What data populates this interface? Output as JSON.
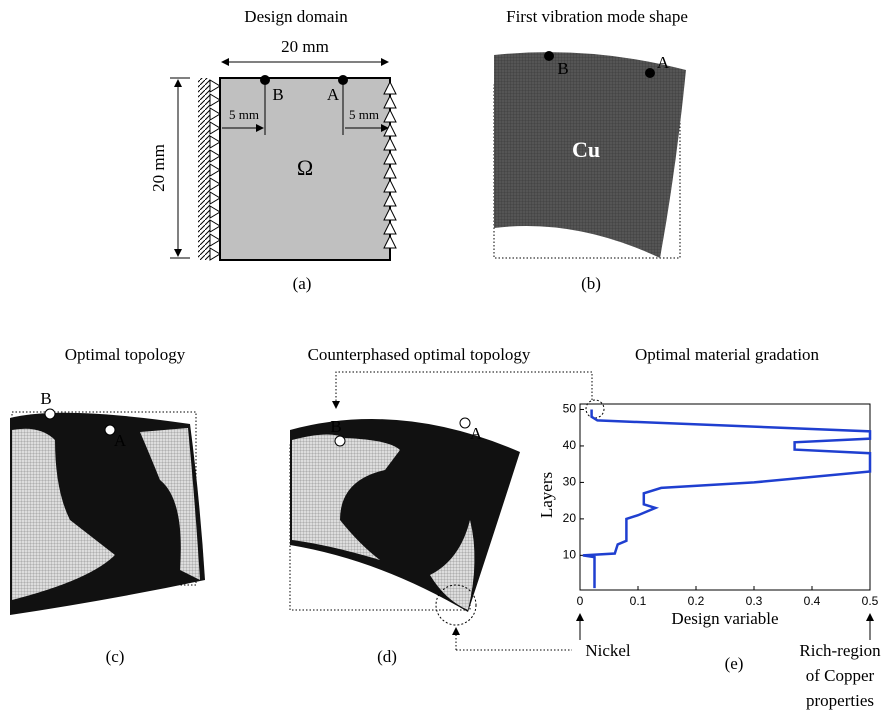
{
  "panels": [
    {
      "title": "Design domain",
      "label": "(a)",
      "width_label": "20 mm",
      "height_label": "20 mm",
      "offset_labels": [
        "5 mm",
        "5 mm"
      ],
      "points": [
        "B",
        "A"
      ],
      "domain_label": "Ω"
    },
    {
      "title": "First vibration mode shape",
      "label": "(b)",
      "points": [
        "B",
        "A"
      ],
      "material": "Cu"
    },
    {
      "title": "Optimal topology",
      "label": "(c)",
      "points": [
        "B",
        "A"
      ]
    },
    {
      "title": "Counterphased optimal topology",
      "label": "(d)",
      "points": [
        "B",
        "A"
      ]
    }
  ],
  "chart_data": {
    "type": "line",
    "title": "Optimal material gradation",
    "x_label": "Design variable",
    "y_label": "Layers",
    "label": "(e)",
    "xlim": [
      0,
      0.5
    ],
    "ylim": [
      0.5,
      51.5
    ],
    "xticks": [
      0,
      0.1,
      0.2,
      0.3,
      0.4,
      0.5
    ],
    "yticks": [
      10,
      20,
      30,
      40,
      50
    ],
    "x": [
      0.025,
      0.025,
      0.005,
      0.06,
      0.065,
      0.08,
      0.08,
      0.1,
      0.13,
      0.11,
      0.11,
      0.14,
      0.3,
      0.5,
      0.5,
      0.37,
      0.37,
      0.5,
      0.5,
      0.03,
      0.02,
      0.02
    ],
    "series": [
      {
        "color": "#1f3fd0",
        "values": [
          1,
          9.5,
          10,
          10.5,
          13,
          14,
          20,
          21,
          23,
          24,
          27,
          28.5,
          30,
          33,
          38,
          39,
          41,
          42,
          44,
          47,
          48,
          50
        ]
      }
    ],
    "annotations": {
      "left": "Nickel",
      "right": [
        "Rich-region",
        "of Copper",
        "properties"
      ]
    }
  }
}
